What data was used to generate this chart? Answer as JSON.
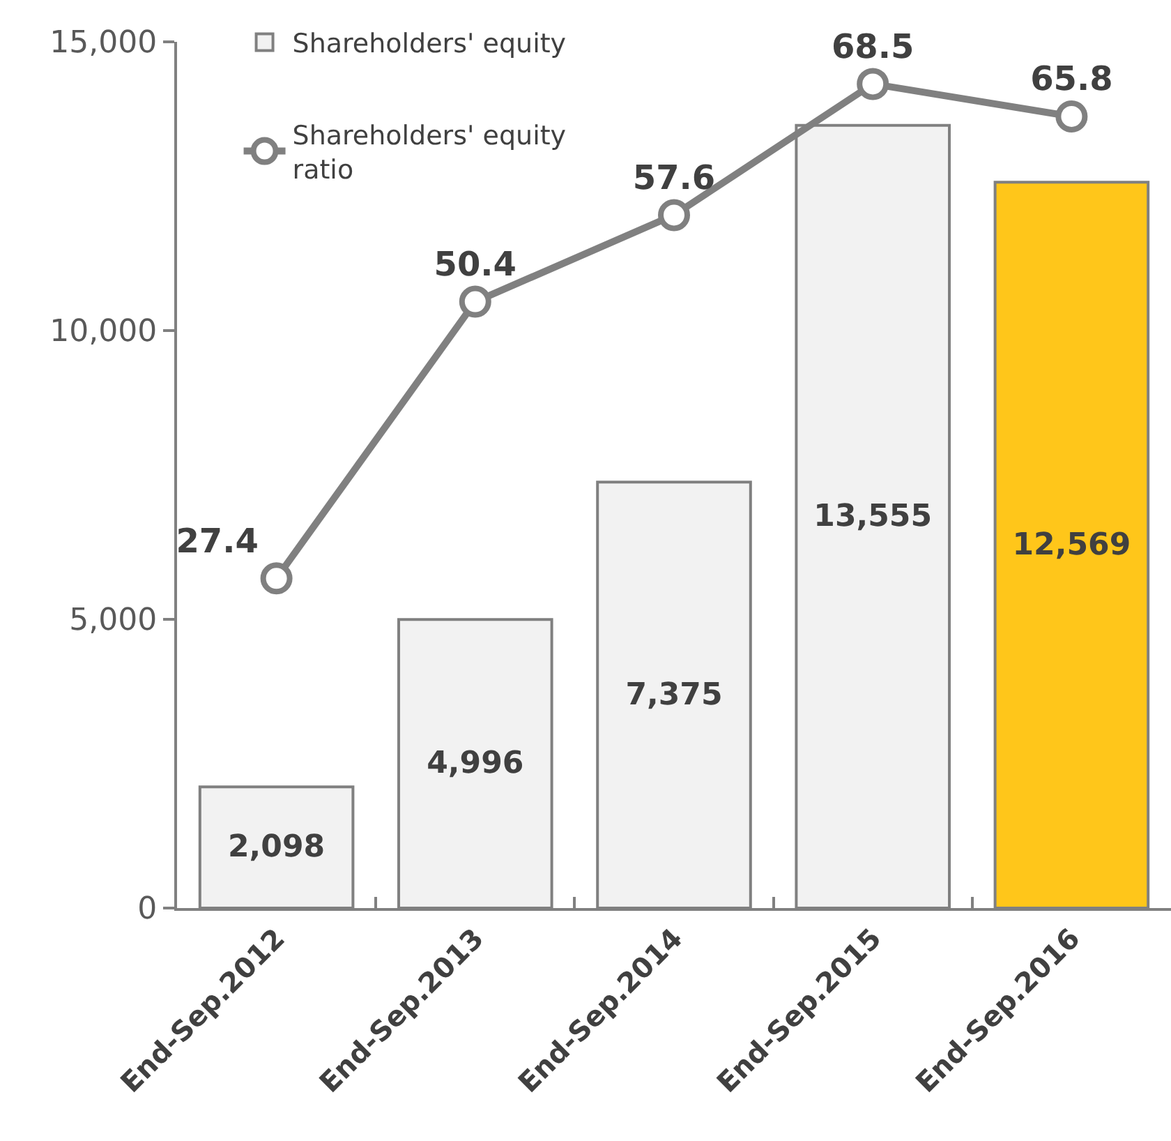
{
  "chart_data": {
    "type": "bar",
    "categories": [
      "End-Sep.2012",
      "End-Sep.2013",
      "End-Sep.2014",
      "End-Sep.2015",
      "End-Sep.2016"
    ],
    "series": [
      {
        "name": "Shareholders' equity",
        "colors": [
          "#f2f2f2",
          "#f2f2f2",
          "#f2f2f2",
          "#f2f2f2",
          "#ffc61a"
        ],
        "values": [
          2098,
          4996,
          7375,
          13555,
          12569
        ],
        "value_labels": [
          "2,098",
          "4,996",
          "7,375",
          "13,555",
          "12,569"
        ]
      },
      {
        "name": "Shareholders' equity ratio",
        "type": "line",
        "axis": "y2",
        "color": "#808080",
        "marker": "circle",
        "values": [
          27.4,
          50.4,
          57.6,
          68.5,
          65.8
        ],
        "value_labels": [
          "27.4",
          "50.4",
          "57.6",
          "68.5",
          "65.8"
        ]
      }
    ],
    "ylim": [
      0,
      15000
    ],
    "yticks": [
      0,
      {
        "value": 5000,
        "label": "5,000"
      },
      {
        "value": 10000,
        "label": "10,000"
      },
      {
        "value": 15000,
        "label": "15,000"
      }
    ],
    "y2lim": [
      0,
      72
    ],
    "legend": "top left"
  }
}
